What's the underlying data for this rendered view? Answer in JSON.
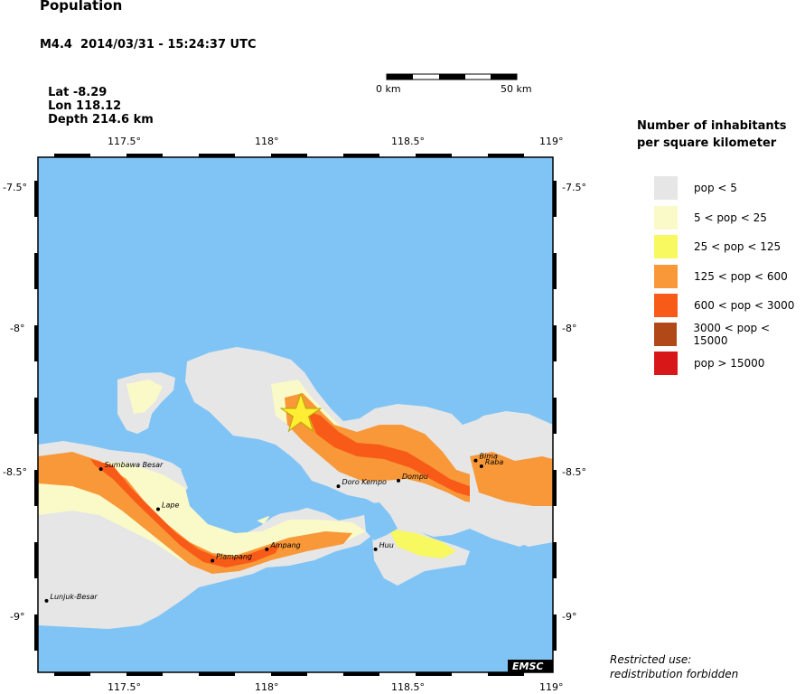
{
  "header": {
    "title": "Population",
    "event_line": "M4.4  2014/03/31 - 15:24:37 UTC",
    "lat": "Lat -8.29",
    "lon": "Lon 118.12",
    "depth": "Depth 214.6 km"
  },
  "scale_bar": {
    "start_label": "0 km",
    "end_label": "50 km"
  },
  "map": {
    "lon_range": [
      117.2,
      119.0
    ],
    "lat_range": [
      -9.2,
      -7.4
    ],
    "lon_ticks": [
      "117.5°",
      "118°",
      "118.5°",
      "119°"
    ],
    "lat_ticks": [
      "-7.5°",
      "-8°",
      "-8.5°",
      "-9°"
    ],
    "epicenter": {
      "lat": -8.29,
      "lon": 118.12,
      "icon": "star-icon",
      "color": "#ffee33"
    },
    "sea_color": "#80c4f5",
    "towns": [
      {
        "name": "Sumbawa Besar",
        "lat": -8.49,
        "lon": 117.42
      },
      {
        "name": "Lape",
        "lat": -8.63,
        "lon": 117.62
      },
      {
        "name": "Plampang",
        "lat": -8.81,
        "lon": 117.81
      },
      {
        "name": "Ampang",
        "lat": -8.77,
        "lon": 118.0
      },
      {
        "name": "Doro Kempo",
        "lat": -8.55,
        "lon": 118.25
      },
      {
        "name": "Dompu",
        "lat": -8.53,
        "lon": 118.46
      },
      {
        "name": "Huu",
        "lat": -8.77,
        "lon": 118.38
      },
      {
        "name": "Bima",
        "lat": -8.46,
        "lon": 118.73
      },
      {
        "name": "Raba",
        "lat": -8.48,
        "lon": 118.75
      },
      {
        "name": "Lunjuk-Besar",
        "lat": -8.95,
        "lon": 117.23
      }
    ],
    "watermark": "EMSC"
  },
  "legend": {
    "title_line1": "Number of inhabitants",
    "title_line2": "per square kilometer",
    "items": [
      {
        "label": "pop < 5",
        "color": "#e6e6e6"
      },
      {
        "label": "5 < pop < 25",
        "color": "#fafac8"
      },
      {
        "label": "25 < pop < 125",
        "color": "#f8f860"
      },
      {
        "label": "125 < pop < 600",
        "color": "#f89838"
      },
      {
        "label": "600 < pop < 3000",
        "color": "#f85a18"
      },
      {
        "label": "3000 < pop < 15000",
        "color": "#b04818"
      },
      {
        "label": "pop > 15000",
        "color": "#d81818"
      }
    ]
  },
  "notice": {
    "line1": "Restricted use:",
    "line2": "redistribution forbidden"
  }
}
